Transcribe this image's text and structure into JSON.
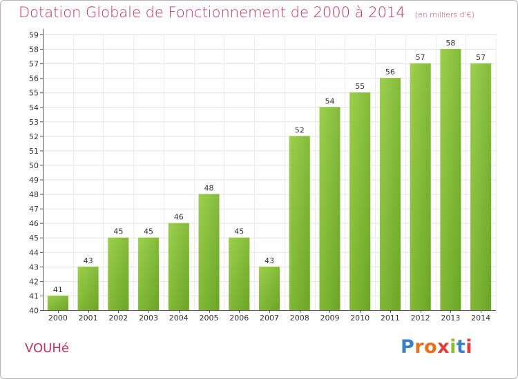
{
  "header": {
    "title": "Dotation Globale de Fonctionnement de 2000 à 2014",
    "unit": "(en milliers d'€)"
  },
  "commune": "VOUHé",
  "logo": {
    "text": "Proxiti",
    "colors": [
      "#3a7fc4",
      "#e8701a",
      "#e8701a",
      "#e23c3c",
      "#8cbf26",
      "#3a7fc4",
      "#e23c3c"
    ]
  },
  "chart_data": {
    "type": "bar",
    "title": "Dotation Globale de Fonctionnement de 2000 à 2014",
    "subtitle": "(en milliers d'€)",
    "xlabel": "",
    "ylabel": "",
    "categories": [
      "2000",
      "2001",
      "2002",
      "2003",
      "2004",
      "2005",
      "2006",
      "2007",
      "2008",
      "2009",
      "2010",
      "2011",
      "2012",
      "2013",
      "2014"
    ],
    "values": [
      41,
      43,
      45,
      45,
      46,
      48,
      45,
      43,
      52,
      54,
      55,
      56,
      57,
      58,
      57
    ],
    "ylim": [
      40,
      59
    ],
    "yticks": [
      40,
      41,
      42,
      43,
      44,
      45,
      46,
      47,
      48,
      49,
      50,
      51,
      52,
      53,
      54,
      55,
      56,
      57,
      58,
      59
    ],
    "grid": true,
    "bar_color_light": "#9ed04a",
    "bar_color_dark": "#6aa51e"
  }
}
